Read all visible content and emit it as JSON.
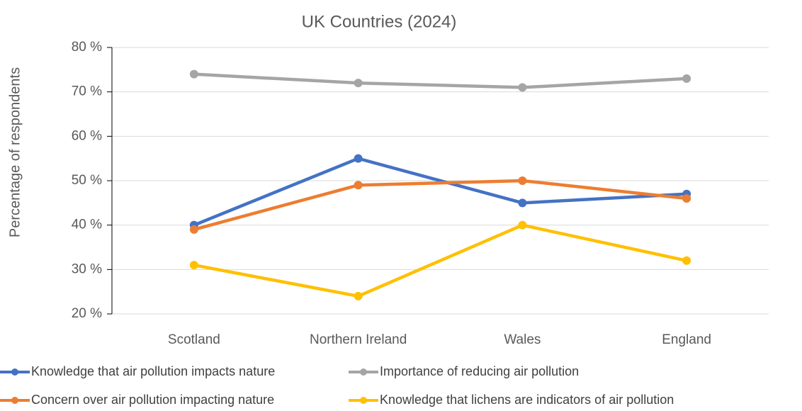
{
  "chart_data": {
    "type": "line",
    "title": "UK Countries (2024)",
    "y_label": "Percentage of respondents",
    "categories": [
      "Scotland",
      "Northern Ireland",
      "Wales",
      "England"
    ],
    "series": [
      {
        "name": "Knowledge that air pollution impacts nature",
        "color": "#4472c4",
        "values": [
          40,
          55,
          45,
          47
        ]
      },
      {
        "name": "Concern over air pollution impacting nature",
        "color": "#ed7d31",
        "values": [
          39,
          49,
          50,
          46
        ]
      },
      {
        "name": "Importance of reducing air pollution",
        "color": "#a5a5a5",
        "values": [
          74,
          72,
          71,
          73
        ]
      },
      {
        "name": "Knowledge that lichens are indicators of air pollution",
        "color": "#ffc000",
        "values": [
          31,
          24,
          40,
          32
        ]
      }
    ],
    "ylim": [
      20,
      80
    ],
    "yticks": [
      {
        "value": 20,
        "label": "20 %"
      },
      {
        "value": 30,
        "label": "30 %"
      },
      {
        "value": 40,
        "label": "40 %"
      },
      {
        "value": 50,
        "label": "50 %"
      },
      {
        "value": 60,
        "label": "60 %"
      },
      {
        "value": 70,
        "label": "70 %"
      },
      {
        "value": 80,
        "label": "80 %"
      }
    ],
    "grid": true
  }
}
